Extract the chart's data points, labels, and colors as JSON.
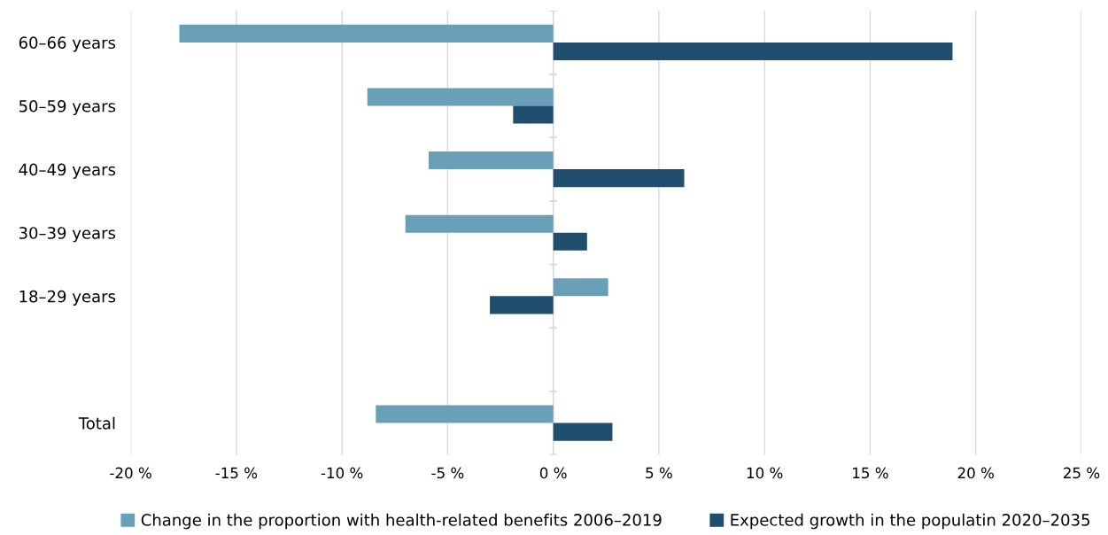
{
  "chart_data": {
    "type": "bar",
    "orientation": "horizontal",
    "categories": [
      "60–66 years",
      "50–59 years",
      "40–49 years",
      "30–39 years",
      "18–29 years",
      null,
      "Total"
    ],
    "series": [
      {
        "name": "Change in the proportion with health-related benefits 2006–2019",
        "color": "#6a9fb8",
        "values": [
          -17.7,
          -8.8,
          -5.9,
          -7.0,
          2.6,
          null,
          -8.4
        ]
      },
      {
        "name": "Expected growth in the populatin 2020–2035",
        "color": "#1f4e6e",
        "values": [
          18.9,
          -1.9,
          6.2,
          1.6,
          -3.0,
          null,
          2.8
        ]
      }
    ],
    "xlim": [
      -20,
      25
    ],
    "xticks": [
      {
        "value": -20,
        "label": "-20 %"
      },
      {
        "value": -15,
        "label": "-15 %"
      },
      {
        "value": -10,
        "label": "-10 %"
      },
      {
        "value": -5,
        "label": "-5 %"
      },
      {
        "value": 0,
        "label": "0 %"
      },
      {
        "value": 5,
        "label": "5 %"
      },
      {
        "value": 10,
        "label": "10 %"
      },
      {
        "value": 15,
        "label": "15 %"
      },
      {
        "value": 20,
        "label": "20 %"
      },
      {
        "value": 25,
        "label": "25 %"
      }
    ],
    "grid": "x",
    "legend": "bottom"
  }
}
